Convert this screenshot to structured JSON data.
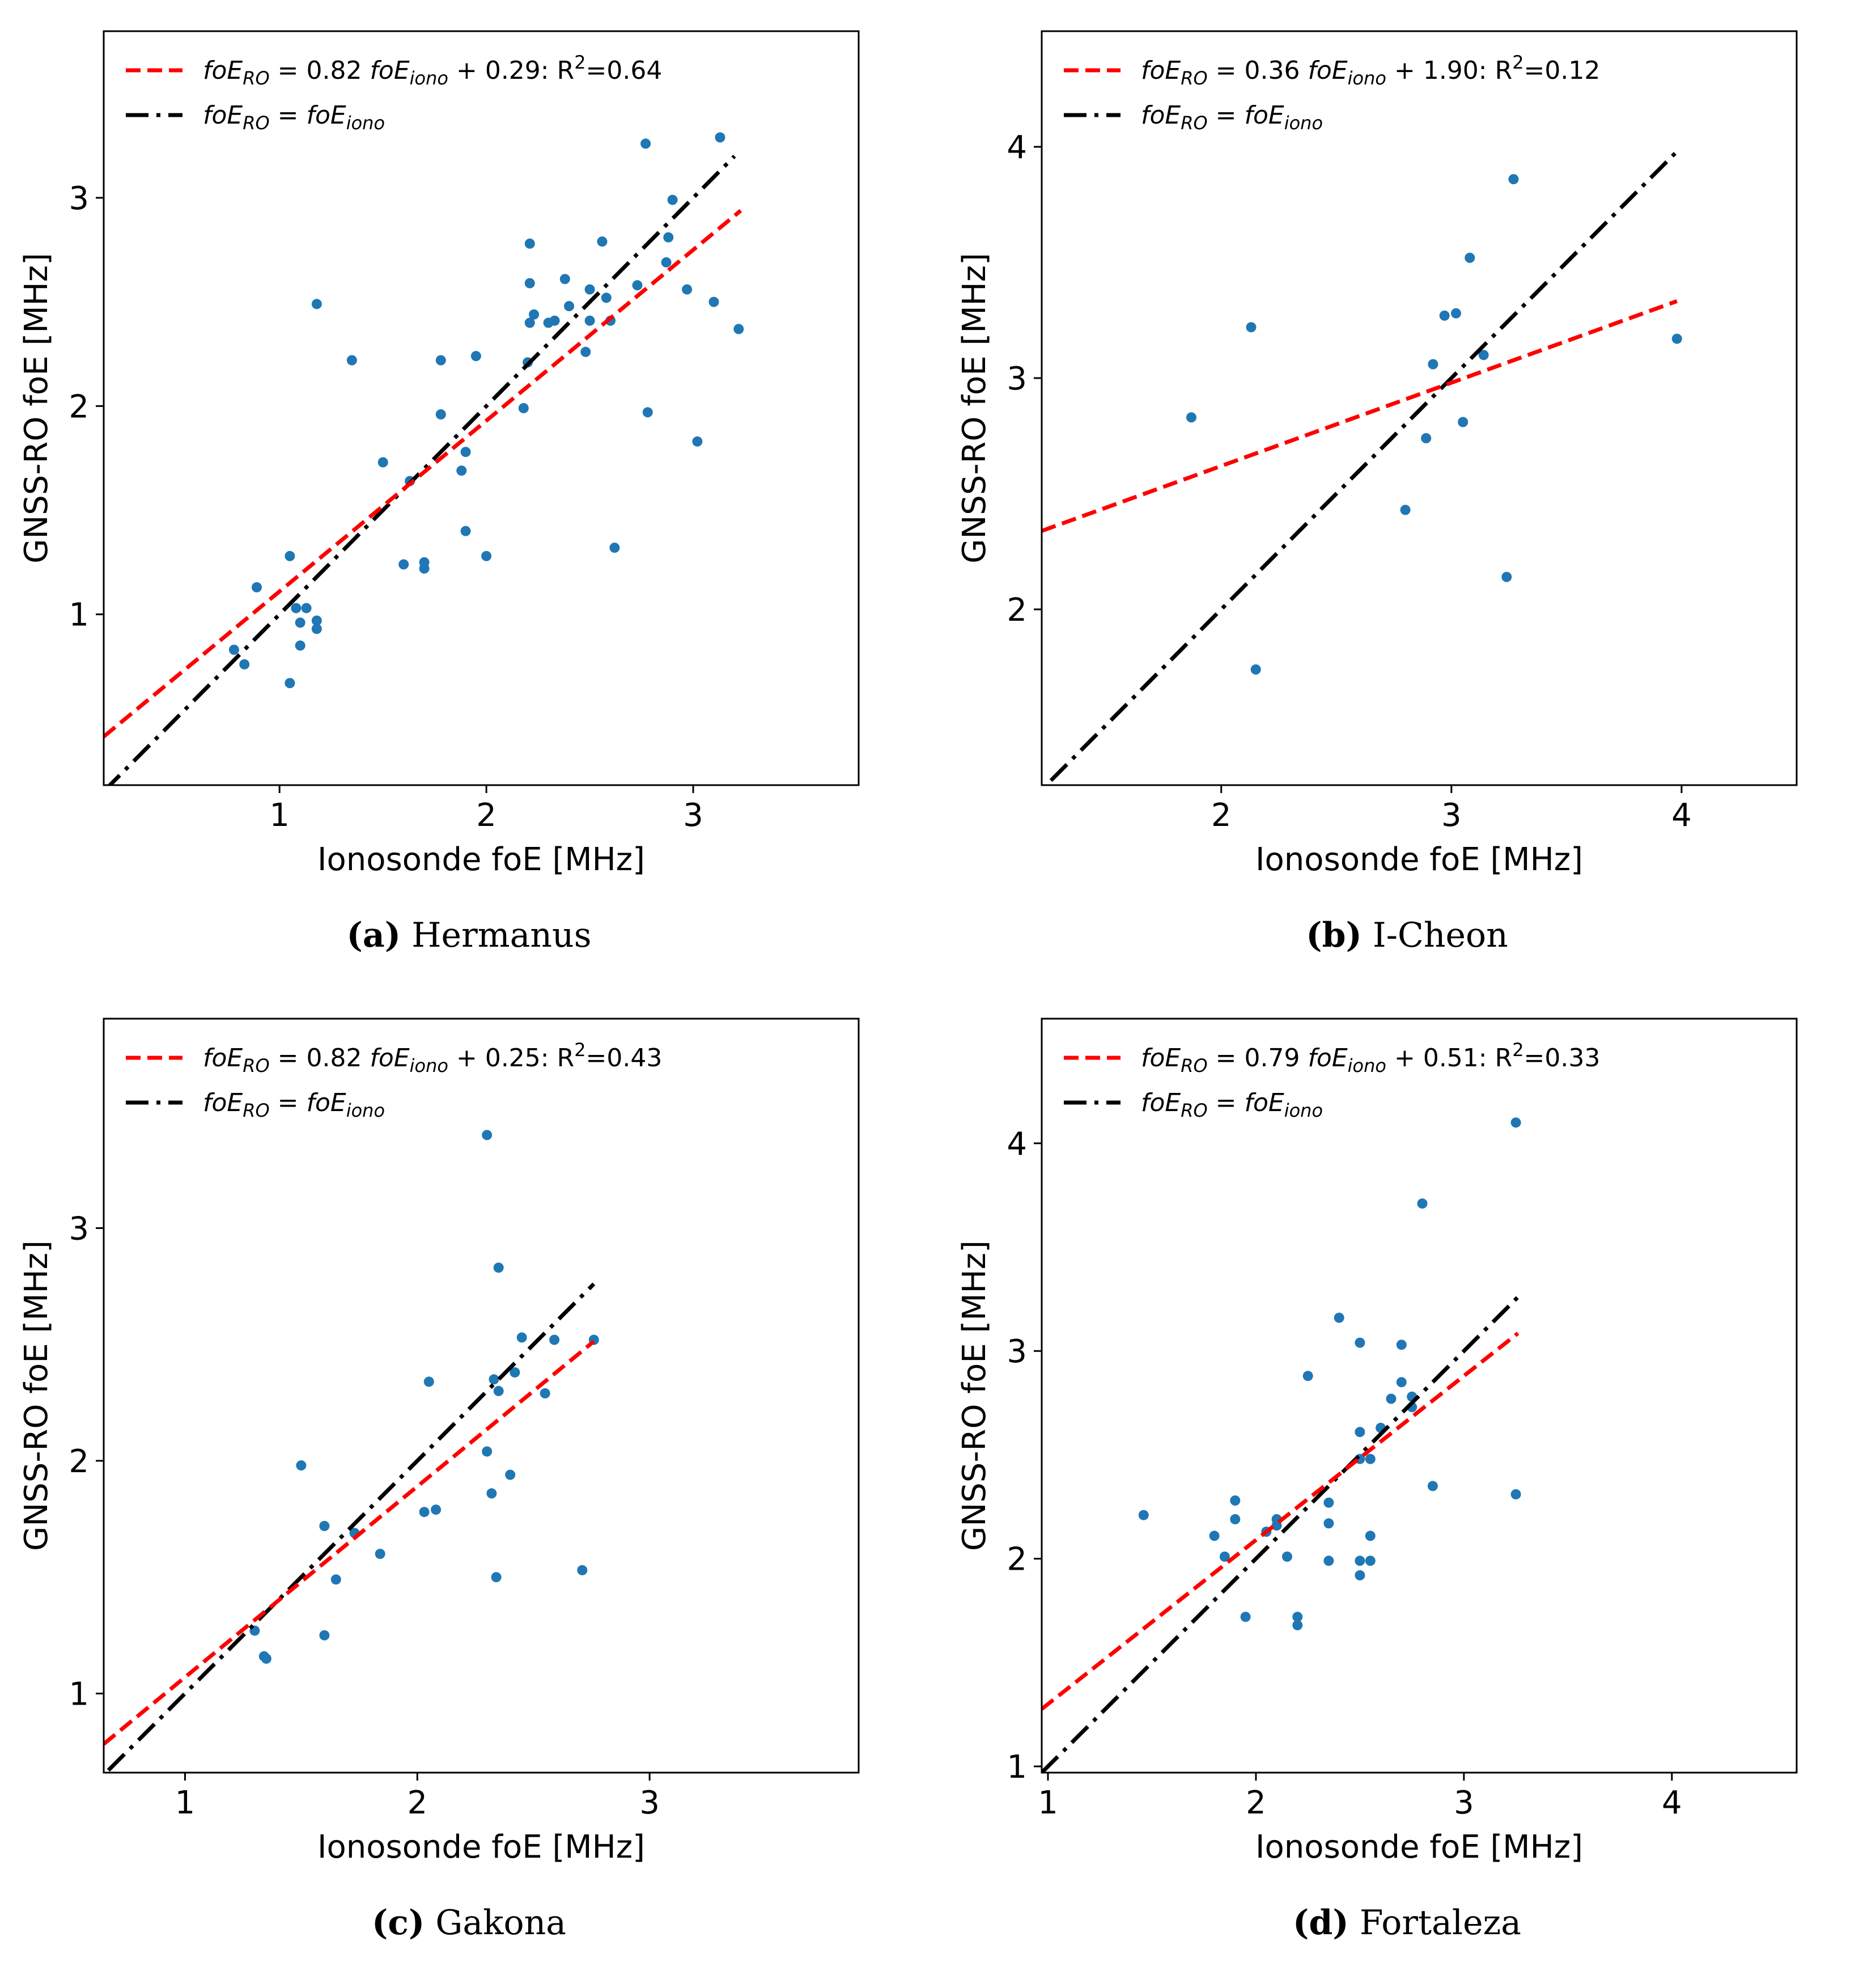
{
  "colors": {
    "points": "#1f77b4",
    "fit_line": "#ff0000",
    "identity_line": "#000000"
  },
  "chart_data": [
    {
      "type": "scatter",
      "panel_letter": "a",
      "caption_open": "(",
      "caption_close": ")",
      "title": "Hermanus",
      "xlabel": "Ionosonde foE [MHz]",
      "ylabel": "GNSS-RO foE [MHz]",
      "xlim": [
        0.15,
        3.8
      ],
      "ylim": [
        0.18,
        3.8
      ],
      "xticks": [
        1,
        2,
        3
      ],
      "yticks": [
        1,
        2,
        3
      ],
      "fit": {
        "slope": 0.82,
        "intercept": 0.29,
        "r2": "0.64",
        "x_range": [
          0.15,
          3.23
        ]
      },
      "identity": {
        "x_range": [
          0.15,
          3.2
        ]
      },
      "legend": {
        "fit_label": {
          "var1": "foE",
          "sub1": "RO",
          "eq": " = 0.82 ",
          "var2": "foE",
          "sub2": "iono",
          "rest": " + 0.29: R",
          "sup": "2",
          "tail": "=0.64"
        },
        "identity_label": {
          "var1": "foE",
          "sub1": "RO",
          "eq": " = ",
          "var2": "foE",
          "sub2": "iono"
        }
      },
      "points": [
        [
          0.78,
          0.83
        ],
        [
          0.83,
          0.76
        ],
        [
          0.89,
          1.13
        ],
        [
          1.05,
          0.67
        ],
        [
          1.05,
          1.28
        ],
        [
          1.08,
          1.03
        ],
        [
          1.1,
          0.96
        ],
        [
          1.1,
          0.85
        ],
        [
          1.13,
          1.03
        ],
        [
          1.18,
          0.97
        ],
        [
          1.18,
          0.93
        ],
        [
          1.18,
          2.49
        ],
        [
          1.35,
          2.22
        ],
        [
          1.5,
          1.73
        ],
        [
          1.6,
          1.24
        ],
        [
          1.63,
          1.64
        ],
        [
          1.7,
          1.25
        ],
        [
          1.7,
          1.22
        ],
        [
          1.78,
          2.22
        ],
        [
          1.78,
          1.96
        ],
        [
          1.88,
          1.69
        ],
        [
          1.9,
          1.4
        ],
        [
          1.9,
          1.78
        ],
        [
          1.95,
          2.24
        ],
        [
          2.0,
          1.28
        ],
        [
          2.18,
          1.99
        ],
        [
          2.2,
          2.21
        ],
        [
          2.21,
          2.4
        ],
        [
          2.21,
          2.59
        ],
        [
          2.21,
          2.78
        ],
        [
          2.23,
          2.44
        ],
        [
          2.3,
          2.4
        ],
        [
          2.33,
          2.41
        ],
        [
          2.38,
          2.61
        ],
        [
          2.4,
          2.48
        ],
        [
          2.48,
          2.26
        ],
        [
          2.5,
          2.56
        ],
        [
          2.5,
          2.41
        ],
        [
          2.56,
          2.79
        ],
        [
          2.58,
          2.52
        ],
        [
          2.6,
          2.41
        ],
        [
          2.62,
          1.32
        ],
        [
          2.73,
          2.58
        ],
        [
          2.77,
          3.26
        ],
        [
          2.78,
          1.97
        ],
        [
          2.87,
          2.69
        ],
        [
          2.88,
          2.81
        ],
        [
          2.9,
          2.99
        ],
        [
          2.97,
          2.56
        ],
        [
          3.02,
          1.83
        ],
        [
          3.1,
          2.5
        ],
        [
          3.13,
          3.29
        ],
        [
          3.22,
          2.37
        ]
      ]
    },
    {
      "type": "scatter",
      "panel_letter": "b",
      "caption_open": "(",
      "caption_close": ")",
      "title": "I-Cheon",
      "xlabel": "Ionosonde foE [MHz]",
      "ylabel": "GNSS-RO foE [MHz]",
      "xlim": [
        1.22,
        4.5
      ],
      "ylim": [
        1.24,
        4.5
      ],
      "xticks": [
        2,
        3,
        4
      ],
      "yticks": [
        2,
        3,
        4
      ],
      "fit": {
        "slope": 0.36,
        "intercept": 1.9,
        "r2": "0.12",
        "x_range": [
          1.22,
          3.98
        ]
      },
      "identity": {
        "x_range": [
          1.26,
          3.98
        ]
      },
      "legend": {
        "fit_label": {
          "var1": "foE",
          "sub1": "RO",
          "eq": " = 0.36 ",
          "var2": "foE",
          "sub2": "iono",
          "rest": " + 1.90: R",
          "sup": "2",
          "tail": "=0.12"
        },
        "identity_label": {
          "var1": "foE",
          "sub1": "RO",
          "eq": " = ",
          "var2": "foE",
          "sub2": "iono"
        }
      },
      "points": [
        [
          1.87,
          2.83
        ],
        [
          2.13,
          3.22
        ],
        [
          2.15,
          1.74
        ],
        [
          2.8,
          2.43
        ],
        [
          2.89,
          2.74
        ],
        [
          2.92,
          3.06
        ],
        [
          2.97,
          3.27
        ],
        [
          3.02,
          3.28
        ],
        [
          3.05,
          2.81
        ],
        [
          3.08,
          3.52
        ],
        [
          3.14,
          3.1
        ],
        [
          3.24,
          2.14
        ],
        [
          3.27,
          3.86
        ],
        [
          3.98,
          3.17
        ]
      ]
    },
    {
      "type": "scatter",
      "panel_letter": "c",
      "caption_open": "(",
      "caption_close": ")",
      "title": "Gakona",
      "xlabel": "Ionosonde foE [MHz]",
      "ylabel": "GNSS-RO foE [MHz]",
      "xlim": [
        0.65,
        3.9
      ],
      "ylim": [
        0.66,
        3.9
      ],
      "xticks": [
        1,
        2,
        3
      ],
      "yticks": [
        1,
        2,
        3
      ],
      "fit": {
        "slope": 0.82,
        "intercept": 0.25,
        "r2": "0.43",
        "x_range": [
          0.65,
          2.76
        ]
      },
      "identity": {
        "x_range": [
          0.67,
          2.76
        ]
      },
      "legend": {
        "fit_label": {
          "var1": "foE",
          "sub1": "RO",
          "eq": " = 0.82 ",
          "var2": "foE",
          "sub2": "iono",
          "rest": " + 0.25: R",
          "sup": "2",
          "tail": "=0.43"
        },
        "identity_label": {
          "var1": "foE",
          "sub1": "RO",
          "eq": " = ",
          "var2": "foE",
          "sub2": "iono"
        }
      },
      "points": [
        [
          1.3,
          1.27
        ],
        [
          1.34,
          1.16
        ],
        [
          1.35,
          1.15
        ],
        [
          1.5,
          1.98
        ],
        [
          1.6,
          1.25
        ],
        [
          1.6,
          1.72
        ],
        [
          1.65,
          1.49
        ],
        [
          1.73,
          1.69
        ],
        [
          1.84,
          1.6
        ],
        [
          2.03,
          1.78
        ],
        [
          2.05,
          2.34
        ],
        [
          2.08,
          1.79
        ],
        [
          2.3,
          2.04
        ],
        [
          2.3,
          3.4
        ],
        [
          2.32,
          1.86
        ],
        [
          2.33,
          2.35
        ],
        [
          2.34,
          1.5
        ],
        [
          2.35,
          2.3
        ],
        [
          2.35,
          2.83
        ],
        [
          2.4,
          1.94
        ],
        [
          2.42,
          2.38
        ],
        [
          2.45,
          2.53
        ],
        [
          2.55,
          2.29
        ],
        [
          2.59,
          2.52
        ],
        [
          2.71,
          1.53
        ],
        [
          2.76,
          2.52
        ]
      ]
    },
    {
      "type": "scatter",
      "panel_letter": "d",
      "caption_open": "(",
      "caption_close": ")",
      "title": "Fortaleza",
      "xlabel": "Ionosonde foE [MHz]",
      "ylabel": "GNSS-RO foE [MHz]",
      "xlim": [
        0.97,
        4.6
      ],
      "ylim": [
        0.97,
        4.6
      ],
      "xticks": [
        1,
        2,
        3,
        4
      ],
      "yticks": [
        1,
        2,
        3,
        4
      ],
      "fit": {
        "slope": 0.79,
        "intercept": 0.51,
        "r2": "0.33",
        "x_range": [
          0.97,
          3.26
        ]
      },
      "identity": {
        "x_range": [
          0.97,
          3.26
        ]
      },
      "legend": {
        "fit_label": {
          "var1": "foE",
          "sub1": "RO",
          "eq": " = 0.79 ",
          "var2": "foE",
          "sub2": "iono",
          "rest": " + 0.51: R",
          "sup": "2",
          "tail": "=0.33"
        },
        "identity_label": {
          "var1": "foE",
          "sub1": "RO",
          "eq": " = ",
          "var2": "foE",
          "sub2": "iono"
        }
      },
      "points": [
        [
          1.46,
          2.21
        ],
        [
          1.8,
          2.11
        ],
        [
          1.85,
          2.01
        ],
        [
          1.9,
          2.28
        ],
        [
          1.9,
          2.19
        ],
        [
          1.95,
          1.72
        ],
        [
          2.05,
          2.13
        ],
        [
          2.1,
          2.19
        ],
        [
          2.1,
          2.16
        ],
        [
          2.15,
          2.01
        ],
        [
          2.2,
          1.72
        ],
        [
          2.2,
          1.68
        ],
        [
          2.25,
          2.88
        ],
        [
          2.35,
          2.27
        ],
        [
          2.35,
          2.17
        ],
        [
          2.35,
          1.99
        ],
        [
          2.4,
          3.16
        ],
        [
          2.5,
          3.04
        ],
        [
          2.5,
          2.61
        ],
        [
          2.5,
          2.48
        ],
        [
          2.5,
          1.99
        ],
        [
          2.5,
          1.92
        ],
        [
          2.55,
          2.48
        ],
        [
          2.55,
          2.11
        ],
        [
          2.55,
          1.99
        ],
        [
          2.6,
          2.63
        ],
        [
          2.65,
          2.77
        ],
        [
          2.7,
          3.03
        ],
        [
          2.7,
          2.85
        ],
        [
          2.75,
          2.73
        ],
        [
          2.75,
          2.78
        ],
        [
          2.8,
          3.71
        ],
        [
          2.85,
          2.35
        ],
        [
          3.25,
          4.1
        ],
        [
          3.25,
          2.31
        ]
      ]
    }
  ]
}
